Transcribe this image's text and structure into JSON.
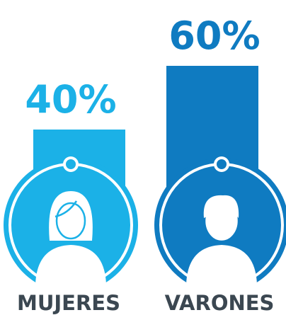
{
  "chart_data": {
    "type": "bar",
    "categories": [
      "MUJERES",
      "VARONES"
    ],
    "values": [
      40,
      60
    ],
    "value_labels": [
      "40%",
      "60%"
    ],
    "colors": [
      "#1bb1e7",
      "#0f7bc1"
    ]
  }
}
